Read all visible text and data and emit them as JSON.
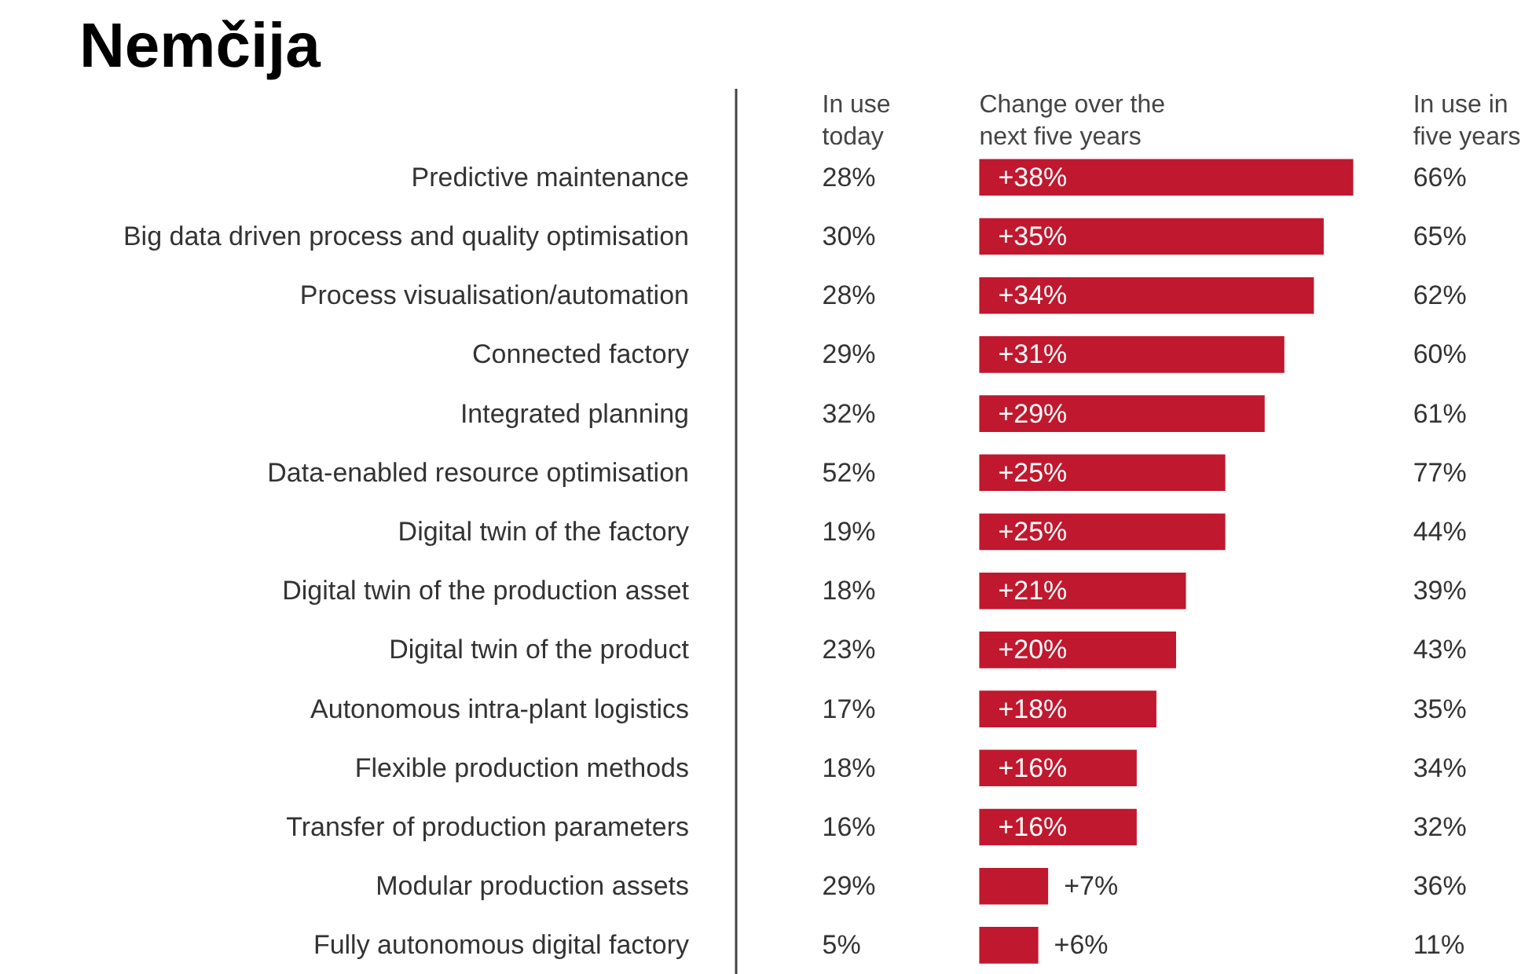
{
  "chart_data": {
    "type": "bar",
    "orientation": "horizontal",
    "title": "Nemčija",
    "categories": [
      "Predictive maintenance",
      "Big data driven process and quality optimisation",
      "Process visualisation/automation",
      "Connected factory",
      "Integrated planning",
      "Data-enabled resource optimisation",
      "Digital twin of the factory",
      "Digital twin of the production asset",
      "Digital twin of the product",
      "Autonomous intra-plant logistics",
      "Flexible production methods",
      "Transfer of production parameters",
      "Modular production assets",
      "Fully autonomous digital factory"
    ],
    "values": [
      38,
      35,
      34,
      31,
      29,
      25,
      25,
      21,
      20,
      18,
      16,
      16,
      7,
      6
    ],
    "color": "#c0182e",
    "value_labels": [
      "+38%",
      "+35%",
      "+34%",
      "+31%",
      "+29%",
      "+25%",
      "+25%",
      "+21%",
      "+20%",
      "+18%",
      "+16%",
      "+16%",
      "+7%",
      "+6%"
    ],
    "tick_labels": "y",
    "annotations": [
      "In use\ntoday",
      "Change over the\nnext five years",
      "In use in\nfive years",
      "28%",
      "30%",
      "28%",
      "29%",
      "32%",
      "52%",
      "19%",
      "18%",
      "23%",
      "17%",
      "18%",
      "16%",
      "29%",
      "5%",
      "66%",
      "65%",
      "62%",
      "60%",
      "61%",
      "77%",
      "44%",
      "39%",
      "43%",
      "35%",
      "34%",
      "32%",
      "36%",
      "11%"
    ]
  }
}
